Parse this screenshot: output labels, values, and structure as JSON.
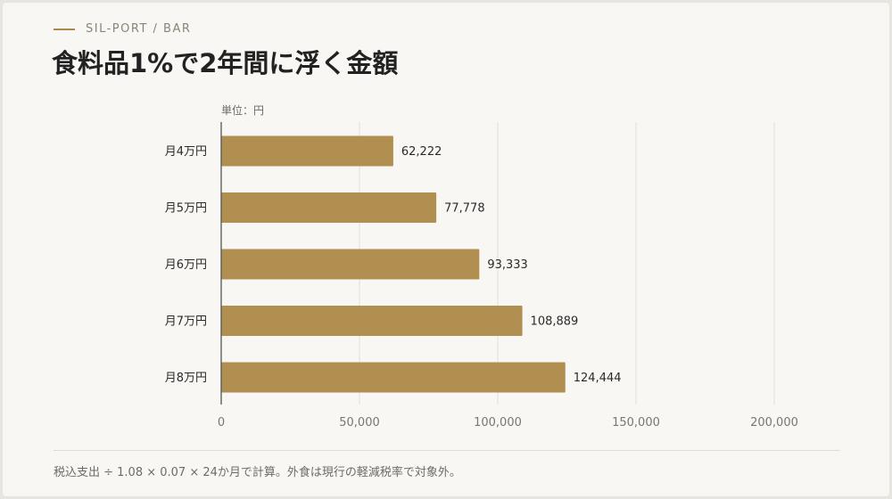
{
  "header": {
    "eyebrow": "SIL-PORT / BAR",
    "title": "食料品1%で2年間に浮く金額"
  },
  "footnote": "税込支出 ÷ 1.08 × 0.07 × 24か月で計算。外食は現行の軽減税率で対象外。",
  "colors": {
    "bar": "#b08f50",
    "accent": "#a88a4e",
    "grid": "#e2ded5",
    "axis": "#555555"
  },
  "chart_data": {
    "type": "bar",
    "orientation": "horizontal",
    "unit_label": "単位：円",
    "categories": [
      "月4万円",
      "月5万円",
      "月6万円",
      "月7万円",
      "月8万円"
    ],
    "values": [
      62222,
      77778,
      93333,
      108889,
      124444
    ],
    "value_labels": [
      "62,222",
      "77,778",
      "93,333",
      "108,889",
      "124,444"
    ],
    "xlim": [
      0,
      225000
    ],
    "xticks": [
      0,
      50000,
      100000,
      150000,
      200000
    ],
    "xtick_labels": [
      "0",
      "50,000",
      "100,000",
      "150,000",
      "200,000"
    ],
    "grid": true,
    "legend": "none"
  }
}
